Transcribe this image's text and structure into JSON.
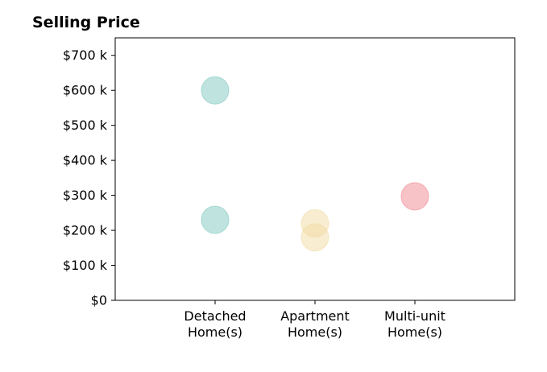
{
  "chart_data": {
    "type": "scatter",
    "title": "Selling Price",
    "xlabel": "",
    "ylabel": "",
    "categories": [
      [
        "Detached",
        "Home(s)"
      ],
      [
        "Apartment",
        "Home(s)"
      ],
      [
        "Multi-unit",
        "Home(s)"
      ]
    ],
    "xlim": [
      -1,
      3
    ],
    "ylim": [
      0,
      750000
    ],
    "y_ticks": [
      0,
      100000,
      200000,
      300000,
      400000,
      500000,
      600000,
      700000
    ],
    "y_tick_labels": [
      "$0",
      "$100 k",
      "$200 k",
      "$300 k",
      "$400 k",
      "$500 k",
      "$600 k",
      "$700 k"
    ],
    "grid": false,
    "legend": "none",
    "series": [
      {
        "category": 0,
        "color": "#7fc8c0",
        "points": [
          {
            "x": 0,
            "y": 600000
          },
          {
            "x": 0,
            "y": 230000
          }
        ]
      },
      {
        "category": 1,
        "color": "#f2dca4",
        "points": [
          {
            "x": 1,
            "y": 220000
          },
          {
            "x": 1,
            "y": 180000
          }
        ]
      },
      {
        "category": 2,
        "color": "#f08890",
        "points": [
          {
            "x": 2,
            "y": 297000
          }
        ]
      }
    ]
  }
}
